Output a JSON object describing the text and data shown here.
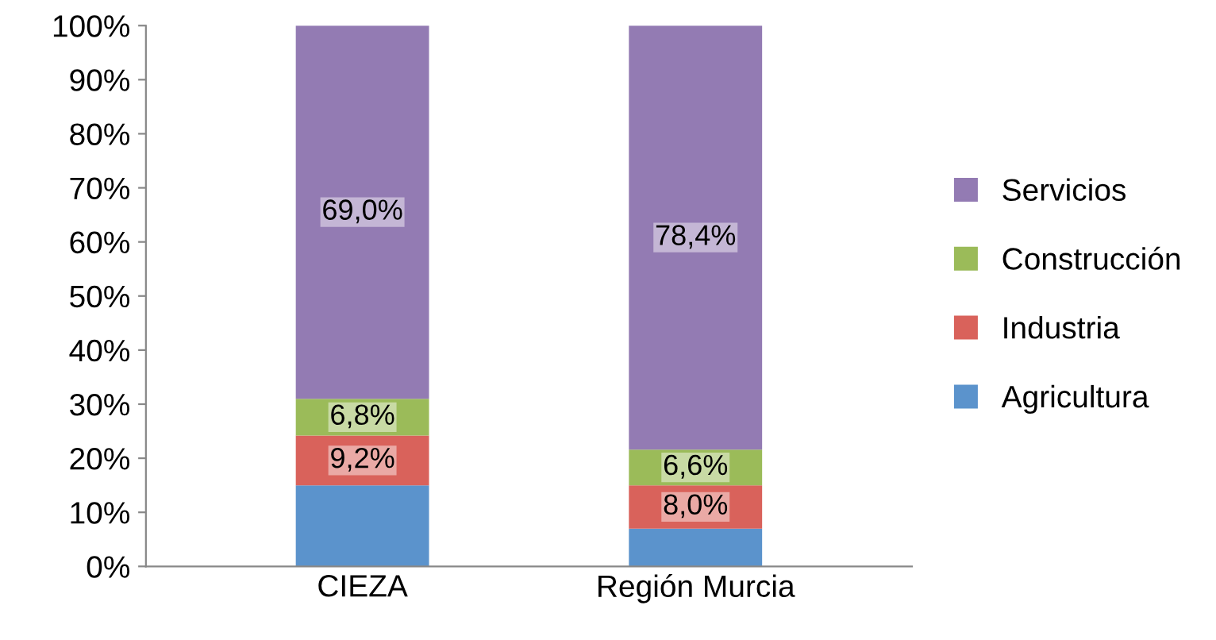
{
  "chart_data": {
    "type": "bar",
    "stacked": true,
    "categories": [
      "CIEZA",
      "Región Murcia"
    ],
    "series": [
      {
        "name": "Agricultura",
        "color": "#5b93cc",
        "values": [
          15.0,
          7.0
        ],
        "value_labels": [
          null,
          null
        ]
      },
      {
        "name": "Industria",
        "color": "#d9625b",
        "values": [
          9.2,
          8.0
        ],
        "value_labels": [
          "9,2%",
          "8,0%"
        ]
      },
      {
        "name": "Construcción",
        "color": "#9bbb59",
        "values": [
          6.8,
          6.6
        ],
        "value_labels": [
          "6,8%",
          "6,6%"
        ]
      },
      {
        "name": "Servicios",
        "color": "#937bb3",
        "values": [
          69.0,
          78.4
        ],
        "value_labels": [
          "69,0%",
          "78,4%"
        ]
      }
    ],
    "ylim": [
      0,
      100
    ],
    "yticks": [
      {
        "value": 0,
        "label": "0%"
      },
      {
        "value": 10,
        "label": "10%"
      },
      {
        "value": 20,
        "label": "20%"
      },
      {
        "value": 30,
        "label": "30%"
      },
      {
        "value": 40,
        "label": "40%"
      },
      {
        "value": 50,
        "label": "50%"
      },
      {
        "value": 60,
        "label": "60%"
      },
      {
        "value": 70,
        "label": "70%"
      },
      {
        "value": 80,
        "label": "80%"
      },
      {
        "value": 90,
        "label": "90%"
      },
      {
        "value": 100,
        "label": "100%"
      }
    ],
    "grid": false,
    "legend": "right"
  }
}
